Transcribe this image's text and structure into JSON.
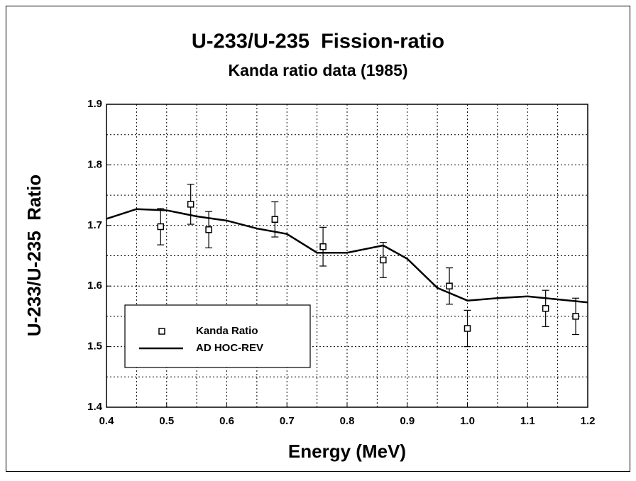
{
  "chart_data": {
    "type": "line",
    "title": "U-233/U-235  Fission-ratio",
    "subtitle": "Kanda ratio data (1985)",
    "x_label": "Energy (MeV)",
    "y_label": "U-233/U-235  Ratio",
    "xlim": [
      0.4,
      1.2
    ],
    "ylim": [
      1.4,
      1.9
    ],
    "xticks": [
      0.4,
      0.5,
      0.6,
      0.7,
      0.8,
      0.9,
      {
        "value": 1,
        "label": "1.0"
      },
      1.1,
      1.2
    ],
    "yticks": [
      1.4,
      1.5,
      1.6,
      1.7,
      1.8,
      1.9
    ],
    "xticks_minor": [
      0.45,
      0.55,
      0.65,
      0.75,
      0.85,
      0.95,
      1.05,
      1.15
    ],
    "yticks_minor": [
      1.45,
      1.55,
      1.65,
      1.75,
      1.85
    ],
    "grid": true,
    "legend": "lower left",
    "series": [
      {
        "name": "Kanda Ratio",
        "type": "scatter",
        "color": "#000000",
        "x": [
          0.49,
          0.54,
          0.57,
          0.68,
          0.76,
          0.86,
          0.97,
          1.0,
          1.13,
          1.18
        ],
        "values": [
          1.698,
          1.735,
          1.693,
          1.71,
          1.665,
          1.643,
          1.6,
          1.53,
          1.563,
          1.55
        ],
        "errors": [
          0.03,
          0.033,
          0.03,
          0.029,
          0.032,
          0.029,
          0.03,
          0.03,
          0.03,
          0.03
        ]
      },
      {
        "name": "AD HOC-REV",
        "type": "line",
        "color": "#000000",
        "x": [
          0.4,
          0.45,
          0.5,
          0.55,
          0.6,
          0.65,
          0.7,
          0.75,
          0.8,
          0.86,
          0.9,
          0.95,
          1.0,
          1.05,
          1.1,
          1.15,
          1.2
        ],
        "values": [
          1.711,
          1.727,
          1.725,
          1.715,
          1.708,
          1.695,
          1.686,
          1.655,
          1.655,
          1.667,
          1.645,
          1.597,
          1.576,
          1.58,
          1.583,
          1.578,
          1.573
        ]
      }
    ]
  }
}
